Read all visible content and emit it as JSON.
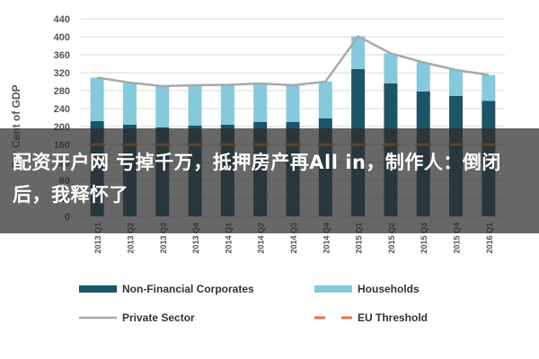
{
  "colors": {
    "non_financial": "#1c5567",
    "households": "#86c9dc",
    "private_sector": "#a8a8a8",
    "eu_threshold": "#e8763a",
    "grid": "#d9d9d9",
    "axis_text": "#555555"
  },
  "overlay": {
    "text": "配资开户网 亏掉千万，抵押房产再All in，制作人：倒闭后，我释怀了"
  },
  "chart_data": {
    "type": "bar",
    "stacked": true,
    "ylabel": "Per Cent of GDP",
    "ylim": [
      0,
      440
    ],
    "yticks": [
      0,
      40,
      80,
      120,
      160,
      200,
      240,
      280,
      320,
      360,
      400,
      440
    ],
    "grid": true,
    "legend_position": "bottom",
    "categories": [
      "2013 Q1",
      "2013 Q2",
      "2013 Q3",
      "2013 Q4",
      "2014 Q1",
      "2014 Q2",
      "2014 Q3",
      "2014 Q4",
      "2015 Q1",
      "2015 Q2",
      "2015 Q3",
      "2015 Q4",
      "2016 Q1"
    ],
    "series": [
      {
        "name": "Non-Financial Corporates",
        "kind": "bar",
        "values": [
          212,
          204,
          198,
          202,
          204,
          210,
          210,
          218,
          328,
          296,
          278,
          268,
          257
        ]
      },
      {
        "name": "Households",
        "kind": "bar",
        "values": [
          97,
          94,
          92,
          90,
          89,
          86,
          82,
          82,
          73,
          67,
          65,
          58,
          58
        ]
      },
      {
        "name": "Private Sector",
        "kind": "line",
        "values": [
          309,
          298,
          290,
          292,
          293,
          296,
          292,
          300,
          401,
          363,
          343,
          326,
          315
        ]
      },
      {
        "name": "EU Threshold",
        "kind": "dashed-line",
        "values": [
          160,
          160,
          160,
          160,
          160,
          160,
          160,
          160,
          160,
          160,
          160,
          160,
          160
        ]
      }
    ]
  }
}
